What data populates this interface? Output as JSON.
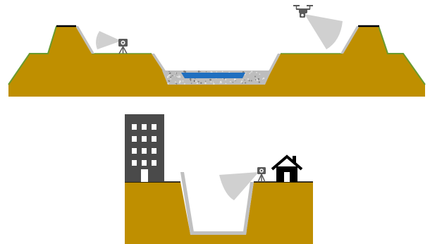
{
  "colors": {
    "background": "#ffffff",
    "soil": "#bf8f00",
    "slope_lining": "#c0c0c0",
    "green_edge": "#6a9a2e",
    "crest_cap": "#000000",
    "water": "#1f6fc0",
    "gravel": "#bdbdbd",
    "building": "#4a4a4a",
    "building_window": "#ffffff",
    "house": "#000000",
    "camera_fov": "#d0d0d0",
    "equipment": "#5a5a5a"
  },
  "scenes": [
    {
      "id": "dike-cross-section",
      "elements": [
        "left-dike",
        "right-dike",
        "riverbed-gravel",
        "river-water",
        "tripod-camera",
        "drone"
      ]
    },
    {
      "id": "urban-excavation-pit",
      "elements": [
        "apartment-building",
        "house",
        "pit-lining",
        "tripod-camera"
      ]
    }
  ],
  "icons": {
    "tripod_camera": "tripod-camera-icon",
    "drone": "drone-icon",
    "building": "apartment-building-icon",
    "house": "house-icon"
  }
}
